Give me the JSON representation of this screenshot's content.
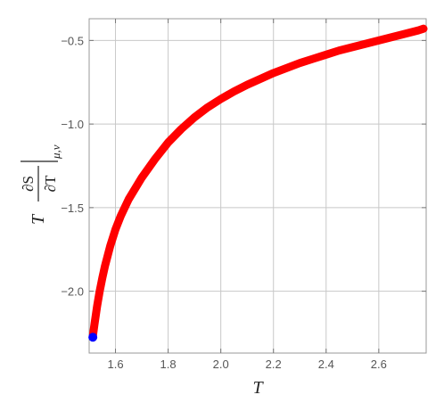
{
  "chart_data": {
    "type": "line",
    "xlabel": "T",
    "ylabel": {
      "prefix": "T",
      "numerator": "∂S",
      "denominator": "∂T",
      "subscript": "μ,ν"
    },
    "xlim": [
      1.5,
      2.78
    ],
    "ylim": [
      -2.37,
      -0.37
    ],
    "x_ticks": [
      1.6,
      1.8,
      2.0,
      2.2,
      2.4,
      2.6
    ],
    "x_tick_labels": [
      "1.6",
      "1.8",
      "2.0",
      "2.2",
      "2.4",
      "2.6"
    ],
    "y_ticks": [
      -0.5,
      -1.0,
      -1.5,
      -2.0
    ],
    "y_tick_labels": [
      "−0.5",
      "−1.0",
      "−1.5",
      "−2.0"
    ],
    "grid": true,
    "series": [
      {
        "color": "#ff0000",
        "x": [
          1.514,
          1.52,
          1.53,
          1.54,
          1.55,
          1.56,
          1.58,
          1.6,
          1.62,
          1.65,
          1.7,
          1.75,
          1.8,
          1.85,
          1.9,
          1.95,
          2.0,
          2.05,
          2.1,
          2.15,
          2.2,
          2.25,
          2.3,
          2.35,
          2.4,
          2.45,
          2.5,
          2.55,
          2.6,
          2.65,
          2.7,
          2.75,
          2.77
        ],
        "y": [
          -2.27,
          -2.2,
          -2.09,
          -2.0,
          -1.92,
          -1.85,
          -1.73,
          -1.63,
          -1.55,
          -1.45,
          -1.32,
          -1.21,
          -1.11,
          -1.03,
          -0.96,
          -0.9,
          -0.85,
          -0.805,
          -0.765,
          -0.73,
          -0.695,
          -0.665,
          -0.635,
          -0.61,
          -0.585,
          -0.56,
          -0.54,
          -0.52,
          -0.5,
          -0.48,
          -0.46,
          -0.44,
          -0.43
        ]
      }
    ],
    "marker_point": {
      "x": 1.514,
      "y": -2.275,
      "color": "#0000ff"
    }
  }
}
